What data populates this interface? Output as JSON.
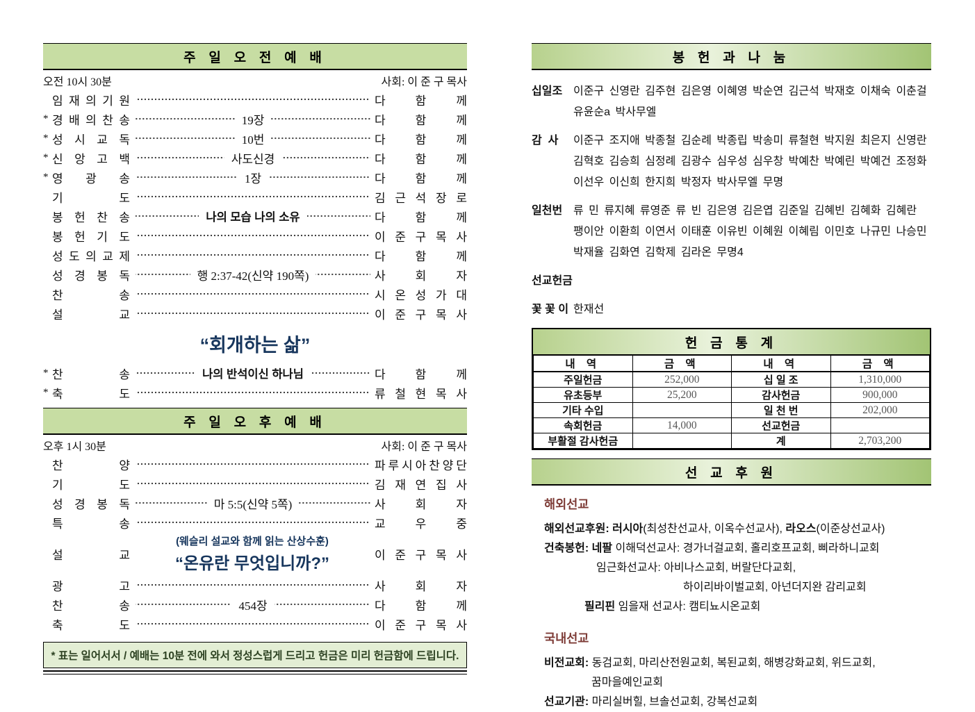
{
  "colors": {
    "banner_green": "#c7dda3",
    "banner_gradient_left": "#b7d18d",
    "banner_gradient_mid": "#e9f2db",
    "banner_gradient_right": "#a2c474",
    "sermon_navy": "#17365d",
    "mission_maroon": "#7d3b36",
    "footer_bg": "#e3eed4"
  },
  "morning": {
    "banner": "주 일 오 전 예 배",
    "time": "오전 10시 30분",
    "presider": "사회: 이 준 구 목사",
    "rows": [
      {
        "star": "",
        "label": "임재의기원",
        "center": "",
        "center_bold": false,
        "name": "다 함 께"
      },
      {
        "star": "*",
        "label": "경배의찬송",
        "center": "19장",
        "center_bold": false,
        "name": "다 함 께"
      },
      {
        "star": "*",
        "label": "성시교독",
        "center": "10번",
        "center_bold": false,
        "name": "다 함 께"
      },
      {
        "star": "*",
        "label": "신앙고백",
        "center": "사도신경",
        "center_bold": false,
        "name": "다 함 께"
      },
      {
        "star": "*",
        "label": "영광송",
        "center": "1장",
        "center_bold": false,
        "name": "다 함 께"
      },
      {
        "star": "",
        "label": "기도",
        "center": "",
        "center_bold": false,
        "name": "김근석 장로"
      },
      {
        "star": "",
        "label": "봉헌찬송",
        "center": "나의 모습 나의 소유",
        "center_bold": true,
        "name": "다 함 께"
      },
      {
        "star": "",
        "label": "봉헌기도",
        "center": "",
        "center_bold": false,
        "name": "이준구 목사"
      },
      {
        "star": "",
        "label": "성도의교제",
        "center": "",
        "center_bold": false,
        "name": "다 함 께"
      },
      {
        "star": "",
        "label": "성경봉독",
        "center": "행 2:37-42(신약 190쪽)",
        "center_bold": false,
        "name": "사 회 자"
      },
      {
        "star": "",
        "label": "찬송",
        "center": "",
        "center_bold": false,
        "name": "시온성가대"
      },
      {
        "star": "",
        "label": "설교",
        "center": "",
        "center_bold": false,
        "name": "이준구 목사"
      }
    ],
    "sermon_title": "“회개하는 삶”",
    "closing_rows": [
      {
        "star": "*",
        "label": "찬송",
        "center": "나의 반석이신 하나님",
        "center_bold": true,
        "name": "다 함 께"
      },
      {
        "star": "*",
        "label": "축도",
        "center": "",
        "center_bold": false,
        "name": "류철현 목사"
      }
    ]
  },
  "afternoon": {
    "banner": "주 일 오 후 예 배",
    "time": "오후 1시 30분",
    "presider": "사회: 이 준 구 목사",
    "rows_before": [
      {
        "star": "",
        "label": "찬양",
        "center": "",
        "center_bold": false,
        "name": "파루시아찬양단"
      },
      {
        "star": "",
        "label": "기도",
        "center": "",
        "center_bold": false,
        "name": "김재연 집사"
      },
      {
        "star": "",
        "label": "성경봉독",
        "center": "마 5:5(신약 5쪽)",
        "center_bold": false,
        "name": "사 회 자"
      },
      {
        "star": "",
        "label": "특송",
        "center": "",
        "center_bold": false,
        "name": "교 우 중"
      }
    ],
    "sermon": {
      "label": "설교",
      "subtitle": "(웨슬리 설교와 함께 읽는 산상수훈)",
      "title": "“온유란 무엇입니까?”",
      "name": "이준구 목사"
    },
    "rows_after": [
      {
        "star": "",
        "label": "광고",
        "center": "",
        "center_bold": false,
        "name": "사 회 자"
      },
      {
        "star": "",
        "label": "찬송",
        "center": "454장",
        "center_bold": false,
        "name": "다 함 께"
      },
      {
        "star": "",
        "label": "축도",
        "center": "",
        "center_bold": false,
        "name": "이준구 목사"
      }
    ]
  },
  "footer": {
    "note": "* 표는 일어서서 / 예배는 10분 전에 와서 정성스럽게 드리고 헌금은 미리 헌금함에 드립니다."
  },
  "offering": {
    "banner": "봉 헌 과 나 눔",
    "groups": [
      {
        "label": "십일조",
        "lines": [
          "이준구 신영란 김주현 김은영  이혜영 박순연 김근석 박재호 이채숙 이춘걸",
          "유윤순a 박사무엘"
        ]
      },
      {
        "label": "감  사",
        "lines": [
          "이준구 조지애 박종철 김순례 박종립 박송미  류철현 박지원 최은지 신영란",
          "김혁호 김승희 심정례 김광수 심우성 심우창 박예찬 박예린 박예건 조정화",
          "이선우 이신희 한지희 박정자 박사무엘 무명"
        ]
      },
      {
        "label": "일천번",
        "lines": [
          "류  민 류지혜 류영준 류  빈 김은영 김은엽 김준일 김혜빈 김혜화 김혜란",
          "팽이안 이환희 이연서 이태훈 이유빈 이혜원 이혜림 이민호 나규민 나승민",
          "박재율 김화연 김학제 김라온 무명4"
        ]
      },
      {
        "label": "선교헌금",
        "lines": []
      },
      {
        "label": "꽃 꽃 이",
        "lines": [
          "한재선"
        ]
      }
    ]
  },
  "stats": {
    "banner": "헌 금 통 계",
    "headers": [
      "내 역",
      "금 액",
      "내 역",
      "금 액"
    ],
    "rows": [
      [
        "주일헌금",
        "252,000",
        "십 일 조",
        "1,310,000"
      ],
      [
        "유초등부",
        "25,200",
        "감사헌금",
        "900,000"
      ],
      [
        "기타 수입",
        "",
        "일 천 번",
        "202,000"
      ],
      [
        "속회헌금",
        "14,000",
        "선교헌금",
        ""
      ],
      [
        "부활절 감사헌금",
        "",
        "계",
        "2,703,200"
      ]
    ]
  },
  "mission": {
    "banner": "선 교 후 원",
    "overseas": {
      "heading": "해외선교",
      "lines": [
        {
          "indent": 0,
          "segments": [
            {
              "t": "해외선교후원: ",
              "b": true
            },
            {
              "t": "러시아",
              "b": true
            },
            {
              "t": "(최성찬선교사, 이옥수선교사), ",
              "b": false
            },
            {
              "t": "라오스",
              "b": true
            },
            {
              "t": "(이준상선교사)",
              "b": false
            }
          ]
        },
        {
          "indent": 0,
          "segments": [
            {
              "t": "건축봉헌: ",
              "b": true
            },
            {
              "t": "네팔",
              "b": true
            },
            {
              "t": " 이해덕선교사: 경가너걸교회, 홀리호프교회, 삐라하니교회",
              "b": false
            }
          ]
        },
        {
          "indent": 75,
          "segments": [
            {
              "t": "임근화선교사: 아비나스교회, 버랄단다교회,",
              "b": false
            }
          ]
        },
        {
          "indent": 200,
          "segments": [
            {
              "t": "하이리바이벌교회, 아넌더지완 감리교회",
              "b": false
            }
          ]
        },
        {
          "indent": 58,
          "segments": [
            {
              "t": "필리핀",
              "b": true
            },
            {
              "t": " 임을재 선교사: 캠티뇨시온교회",
              "b": false
            }
          ]
        }
      ]
    },
    "domestic": {
      "heading": "국내선교",
      "lines": [
        {
          "indent": 0,
          "segments": [
            {
              "t": "비전교회: ",
              "b": true
            },
            {
              "t": "동검교회, 마리산전원교회, 복된교회, 해병강화교회, 위드교회,",
              "b": false
            }
          ]
        },
        {
          "indent": 68,
          "segments": [
            {
              "t": "꿈마을예인교회",
              "b": false
            }
          ]
        },
        {
          "indent": 0,
          "segments": [
            {
              "t": "선교기관: ",
              "b": true
            },
            {
              "t": "마리실버힐, 브솔선교회, 강복선교회",
              "b": false
            }
          ]
        }
      ]
    }
  }
}
